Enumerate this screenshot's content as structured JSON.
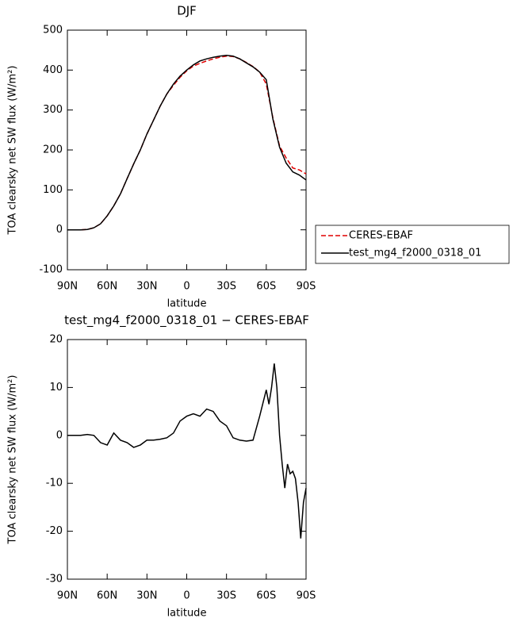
{
  "chart_data": [
    {
      "type": "line",
      "title": "DJF",
      "xlabel": "latitude",
      "ylabel": "TOA clearsky net SW flux (W/m²)",
      "xlim": [
        90,
        -90
      ],
      "xticks": [
        {
          "value": 90,
          "label": "90N"
        },
        {
          "value": 60,
          "label": "60N"
        },
        {
          "value": 30,
          "label": "30N"
        },
        0,
        {
          "value": -30,
          "label": "30S"
        },
        {
          "value": -60,
          "label": "60S"
        },
        {
          "value": -90,
          "label": "90S"
        }
      ],
      "ylim": [
        -100,
        500
      ],
      "yticks": [
        -100,
        0,
        100,
        200,
        300,
        400,
        500
      ],
      "x": [
        90,
        85,
        80,
        75,
        70,
        65,
        60,
        55,
        50,
        45,
        40,
        35,
        30,
        25,
        20,
        15,
        10,
        5,
        0,
        -5,
        -10,
        -15,
        -20,
        -25,
        -30,
        -35,
        -40,
        -45,
        -50,
        -55,
        -60,
        -65,
        -70,
        -75,
        -80,
        -85,
        -90
      ],
      "series": [
        {
          "name": "CERES-EBAF",
          "color": "#e00000",
          "dash": true,
          "values": [
            0,
            0,
            0,
            1,
            5,
            15,
            35,
            60,
            90,
            128,
            165,
            200,
            240,
            275,
            310,
            340,
            362,
            382,
            398,
            410,
            417,
            423,
            428,
            432,
            435,
            434,
            428,
            419,
            409,
            395,
            365,
            280,
            210,
            180,
            155,
            150,
            140
          ]
        },
        {
          "name": "test_mg4_f2000_0318_01",
          "color": "#000000",
          "dash": false,
          "values": [
            0,
            0,
            0,
            1,
            5,
            15,
            35,
            60,
            90,
            128,
            165,
            200,
            240,
            275,
            310,
            340,
            365,
            385,
            400,
            413,
            423,
            428,
            432,
            435,
            437,
            435,
            428,
            418,
            408,
            395,
            376,
            277,
            207,
            167,
            145,
            137,
            125
          ]
        }
      ]
    },
    {
      "type": "line",
      "title": "test_mg4_f2000_0318_01 − CERES-EBAF",
      "xlabel": "latitude",
      "ylabel": "TOA clearsky net SW flux (W/m²)",
      "xlim": [
        90,
        -90
      ],
      "xticks": [
        {
          "value": 90,
          "label": "90N"
        },
        {
          "value": 60,
          "label": "60N"
        },
        {
          "value": 30,
          "label": "30N"
        },
        0,
        {
          "value": -30,
          "label": "30S"
        },
        {
          "value": -60,
          "label": "60S"
        },
        {
          "value": -90,
          "label": "90S"
        }
      ],
      "ylim": [
        -30,
        20
      ],
      "yticks": [
        -30,
        -20,
        -10,
        0,
        10,
        20
      ],
      "x": [
        90,
        85,
        80,
        75,
        70,
        65,
        60,
        55,
        50,
        45,
        40,
        35,
        30,
        25,
        20,
        15,
        10,
        5,
        0,
        -5,
        -10,
        -15,
        -20,
        -25,
        -30,
        -35,
        -40,
        -45,
        -50,
        -55,
        -60,
        -62,
        -64,
        -66,
        -68,
        -70,
        -72,
        -74,
        -76,
        -78,
        -80,
        -82,
        -84,
        -86,
        -88,
        -90
      ],
      "color": "#000000",
      "values": [
        0,
        0,
        0,
        0.2,
        0,
        -1.5,
        -2,
        0.5,
        -1,
        -1.5,
        -2.5,
        -2,
        -1,
        -1,
        -0.8,
        -0.5,
        0.5,
        3,
        4,
        4.5,
        4,
        5.5,
        5,
        3,
        2,
        -0.5,
        -1,
        -1.2,
        -1,
        4,
        9.5,
        6.5,
        10,
        15,
        10,
        0,
        -6,
        -11,
        -6,
        -8,
        -7.5,
        -9,
        -14,
        -21.5,
        -14,
        -11
      ]
    }
  ]
}
